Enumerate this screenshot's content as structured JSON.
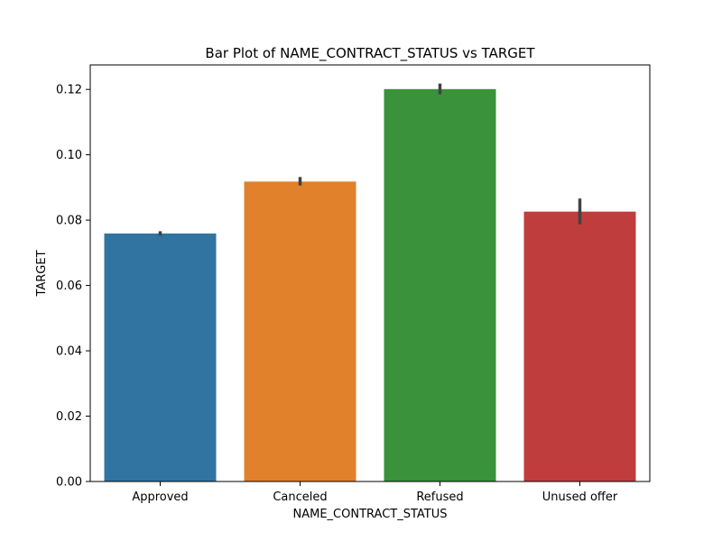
{
  "chart_data": {
    "type": "bar",
    "title": "Bar Plot of NAME_CONTRACT_STATUS vs TARGET",
    "xlabel": "NAME_CONTRACT_STATUS",
    "ylabel": "TARGET",
    "categories": [
      "Approved",
      "Canceled",
      "Refused",
      "Unused offer"
    ],
    "values": [
      0.0759,
      0.0918,
      0.1201,
      0.0826
    ],
    "error_low": [
      0.0752,
      0.0906,
      0.1185,
      0.0787
    ],
    "error_high": [
      0.0766,
      0.0932,
      0.1218,
      0.0866
    ],
    "colors": [
      "#3274a1",
      "#e1812c",
      "#3a923a",
      "#c03d3e"
    ],
    "error_color": "#424242",
    "ylim": [
      0,
      0.1275
    ],
    "yticks": [
      0.0,
      0.02,
      0.04,
      0.06,
      0.08,
      0.1,
      0.12
    ],
    "ytick_labels": [
      "0.00",
      "0.02",
      "0.04",
      "0.06",
      "0.08",
      "0.10",
      "0.12"
    ],
    "grid": false,
    "legend": "none"
  }
}
